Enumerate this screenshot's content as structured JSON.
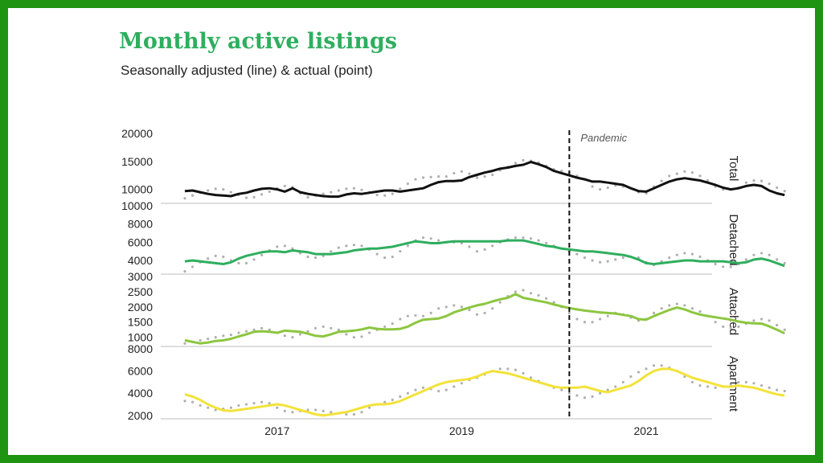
{
  "chart_data": {
    "type": "line",
    "title": "Monthly active listings",
    "subtitle": "Seasonally adjusted (line) & actual (point)",
    "x_ticks": [
      "2017",
      "2019",
      "2021"
    ],
    "x_range": [
      "2016-01",
      "2021-08"
    ],
    "annotation": {
      "date": "2020-03",
      "label": "Pandemic"
    },
    "grid": false,
    "colors": {
      "frame": "#1f9312",
      "title": "#2fae5e",
      "actual_points": "#b0b0b0"
    },
    "panels": [
      {
        "name": "Total",
        "color": "#111111",
        "ylim": [
          7500,
          20000
        ],
        "y_ticks": [
          "10000",
          "15000",
          "20000"
        ],
        "adjusted": [
          9700,
          9800,
          9500,
          9200,
          9000,
          8900,
          8800,
          9200,
          9400,
          9800,
          10100,
          10200,
          10000,
          9600,
          10200,
          9500,
          9200,
          9000,
          8800,
          8700,
          8700,
          9100,
          9300,
          9200,
          9400,
          9600,
          9800,
          9800,
          9600,
          9800,
          10000,
          10200,
          10800,
          11300,
          11500,
          11500,
          11600,
          12200,
          12600,
          13000,
          13300,
          13700,
          13900,
          14200,
          14400,
          14900,
          14500,
          14000,
          13300,
          12900,
          12500,
          12100,
          11800,
          11400,
          11400,
          11200,
          11000,
          10800,
          10200,
          9700,
          9600,
          10200,
          10800,
          11400,
          11800,
          12000,
          11800,
          11600,
          11200,
          10800,
          10300,
          10000,
          10200,
          10600,
          10800,
          10600,
          9800,
          9300,
          9000
        ],
        "actual": [
          8400,
          8900,
          9400,
          9800,
          10100,
          10000,
          9500,
          9000,
          8500,
          8600,
          9100,
          9600,
          10200,
          10600,
          10400,
          9300,
          8600,
          8900,
          9200,
          9500,
          9800,
          10100,
          10200,
          9900,
          9500,
          9000,
          8900,
          9200,
          10100,
          11000,
          11800,
          12100,
          12200,
          12300,
          12300,
          12900,
          13200,
          12800,
          12100,
          12300,
          12600,
          13400,
          14000,
          14700,
          15200,
          15100,
          14800,
          14200,
          13600,
          13300,
          13000,
          12400,
          11800,
          10500,
          10000,
          10300,
          10700,
          10500,
          10200,
          9500,
          9300,
          10500,
          11500,
          12400,
          12800,
          13200,
          13000,
          12400,
          11600,
          10500,
          10000,
          10000,
          10300,
          11200,
          11600,
          11500,
          11000,
          10300,
          9700
        ]
      },
      {
        "name": "Detached",
        "color": "#2fae5e",
        "ylim": [
          2500,
          10000
        ],
        "y_ticks": [
          "4000",
          "6000",
          "8000",
          "10000"
        ],
        "adjusted": [
          3900,
          4000,
          3900,
          3800,
          3700,
          3600,
          3800,
          4200,
          4500,
          4700,
          4900,
          5000,
          5000,
          4900,
          5100,
          5000,
          4900,
          4700,
          4700,
          4700,
          4800,
          4900,
          5100,
          5200,
          5300,
          5300,
          5400,
          5500,
          5700,
          5900,
          6100,
          6000,
          5900,
          5900,
          6000,
          6100,
          6100,
          6100,
          6100,
          6100,
          6100,
          6100,
          6200,
          6200,
          6200,
          6000,
          5800,
          5600,
          5500,
          5300,
          5200,
          5100,
          5000,
          5000,
          4900,
          4800,
          4700,
          4600,
          4400,
          4100,
          3700,
          3600,
          3700,
          3800,
          3900,
          4000,
          4000,
          3900,
          3900,
          3900,
          3900,
          3800,
          3700,
          3800,
          4100,
          4200,
          4000,
          3700,
          3400
        ],
        "actual": [
          2800,
          3300,
          3800,
          4200,
          4500,
          4400,
          4000,
          3700,
          3700,
          4100,
          4600,
          5100,
          5500,
          5600,
          5300,
          4800,
          4400,
          4300,
          4500,
          5000,
          5400,
          5600,
          5700,
          5600,
          5200,
          4700,
          4300,
          4400,
          5000,
          5600,
          6200,
          6500,
          6400,
          6200,
          6000,
          6000,
          5900,
          5500,
          5000,
          5200,
          5600,
          6000,
          6300,
          6500,
          6500,
          6400,
          6200,
          5900,
          5600,
          5300,
          5000,
          4700,
          4300,
          4000,
          3800,
          3900,
          4100,
          4300,
          4400,
          4300,
          3800,
          3500,
          3900,
          4300,
          4600,
          4800,
          4700,
          4400,
          4000,
          3600,
          3300,
          3300,
          3600,
          4100,
          4600,
          4800,
          4600,
          4100,
          3700
        ]
      },
      {
        "name": "Attached",
        "color": "#8cc63f",
        "ylim": [
          700,
          3000
        ],
        "y_ticks": [
          "1000",
          "1500",
          "2000",
          "2500",
          "3000"
        ],
        "adjusted": [
          900,
          850,
          800,
          830,
          880,
          900,
          950,
          1030,
          1100,
          1180,
          1200,
          1180,
          1150,
          1220,
          1200,
          1180,
          1120,
          1050,
          1030,
          1100,
          1180,
          1200,
          1220,
          1260,
          1320,
          1280,
          1260,
          1260,
          1280,
          1350,
          1480,
          1580,
          1600,
          1620,
          1700,
          1820,
          1900,
          1980,
          2050,
          2100,
          2180,
          2250,
          2300,
          2420,
          2300,
          2250,
          2200,
          2150,
          2080,
          2020,
          1960,
          1920,
          1880,
          1850,
          1820,
          1800,
          1780,
          1740,
          1700,
          1600,
          1580,
          1700,
          1800,
          1900,
          1980,
          1920,
          1820,
          1750,
          1700,
          1660,
          1620,
          1580,
          1520,
          1480,
          1460,
          1450,
          1360,
          1250,
          1130
        ],
        "actual": [
          800,
          850,
          900,
          950,
          1000,
          1050,
          1080,
          1150,
          1200,
          1250,
          1300,
          1250,
          1150,
          1050,
          1000,
          1100,
          1200,
          1300,
          1350,
          1300,
          1250,
          1100,
          1000,
          1020,
          1150,
          1250,
          1350,
          1450,
          1600,
          1700,
          1720,
          1700,
          1800,
          1950,
          2000,
          2050,
          2000,
          1900,
          1750,
          1800,
          1950,
          2150,
          2350,
          2500,
          2550,
          2450,
          2380,
          2280,
          2150,
          2000,
          1800,
          1600,
          1500,
          1500,
          1600,
          1700,
          1800,
          1750,
          1650,
          1550,
          1600,
          1800,
          1950,
          2050,
          2100,
          2050,
          1950,
          1850,
          1700,
          1500,
          1350,
          1300,
          1350,
          1450,
          1550,
          1600,
          1550,
          1400,
          1250
        ]
      },
      {
        "name": "Apartment",
        "color": "#f3e23a",
        "ylim": [
          1700,
          8000
        ],
        "y_ticks": [
          "2000",
          "4000",
          "6000",
          "8000"
        ],
        "adjusted": [
          3900,
          3700,
          3400,
          3000,
          2700,
          2450,
          2400,
          2500,
          2600,
          2700,
          2800,
          2900,
          3000,
          2900,
          2700,
          2500,
          2300,
          2100,
          2000,
          2100,
          2200,
          2300,
          2500,
          2700,
          2900,
          3000,
          3000,
          3100,
          3300,
          3600,
          3900,
          4200,
          4500,
          4800,
          5000,
          5100,
          5200,
          5300,
          5500,
          5800,
          6000,
          5900,
          5800,
          5600,
          5400,
          5200,
          5000,
          4800,
          4600,
          4500,
          4500,
          4500,
          4600,
          4400,
          4200,
          4100,
          4300,
          4500,
          4700,
          5100,
          5600,
          6000,
          6200,
          6200,
          6000,
          5700,
          5400,
          5200,
          5000,
          4800,
          4600,
          4600,
          4700,
          4600,
          4500,
          4300,
          4100,
          3900,
          3800
        ],
        "actual": [
          3300,
          3200,
          2900,
          2700,
          2500,
          2600,
          2700,
          2900,
          3000,
          3100,
          3200,
          3100,
          2700,
          2400,
          2300,
          2400,
          2500,
          2500,
          2400,
          2300,
          2200,
          2100,
          2100,
          2300,
          2700,
          3000,
          3200,
          3400,
          3700,
          4000,
          4300,
          4500,
          4400,
          4200,
          4300,
          4600,
          4900,
          5200,
          5400,
          5700,
          6000,
          6200,
          6200,
          6100,
          5800,
          5400,
          5100,
          4800,
          4500,
          4300,
          4000,
          3800,
          3600,
          3700,
          4000,
          4300,
          4600,
          5000,
          5500,
          5900,
          6200,
          6500,
          6500,
          6300,
          6000,
          5500,
          5000,
          4700,
          4600,
          4500,
          4600,
          4800,
          5000,
          5000,
          4900,
          4700,
          4500,
          4300,
          4200
        ]
      }
    ]
  }
}
